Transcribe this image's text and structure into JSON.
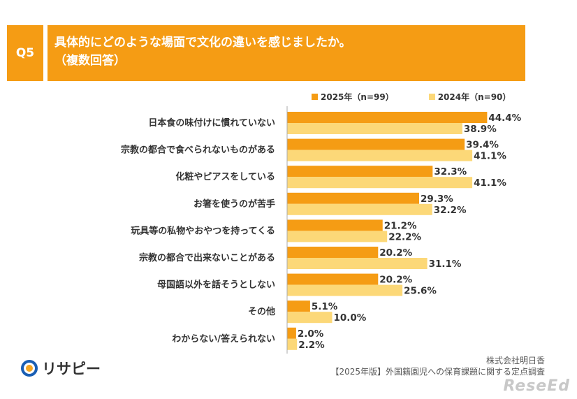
{
  "header": {
    "badge": "Q5",
    "title_line1": "具体的にどのような場面で文化の違いを感じましたか。",
    "title_line2": "（複数回答）"
  },
  "legend": {
    "series1": "2025年（n=99）",
    "series2": "2024年（n=90）"
  },
  "colors": {
    "series1": "#f59c14",
    "series2": "#fcd878",
    "header": "#f59c14",
    "axis": "#aaaaaa"
  },
  "footer": {
    "logo": "リサピー",
    "source_line1": "株式会社明日香",
    "source_line2": "【2025年版】外国籍園児への保育課題に関する定点調査",
    "watermark": "ReseEd"
  },
  "chart_data": {
    "type": "bar",
    "orientation": "horizontal",
    "categories": [
      "日本食の味付けに慣れていない",
      "宗教の都合で食べられないものがある",
      "化粧やピアスをしている",
      "お箸を使うのが苦手",
      "玩具等の私物やおやつを持ってくる",
      "宗教の都合で出来ないことがある",
      "母国語以外を話そうとしない",
      "その他",
      "わからない/答えられない"
    ],
    "series": [
      {
        "name": "2025年（n=99）",
        "values": [
          44.4,
          39.4,
          32.3,
          29.3,
          21.2,
          20.2,
          20.2,
          5.1,
          2.0
        ],
        "labels": [
          "44.4%",
          "39.4%",
          "32.3%",
          "29.3%",
          "21.2%",
          "20.2%",
          "20.2%",
          "5.1%",
          "2.0%"
        ]
      },
      {
        "name": "2024年（n=90）",
        "values": [
          38.9,
          41.1,
          41.1,
          32.2,
          22.2,
          31.1,
          25.6,
          10.0,
          2.2
        ],
        "labels": [
          "38.9%",
          "41.1%",
          "41.1%",
          "32.2%",
          "22.2%",
          "31.1%",
          "25.6%",
          "10.0%",
          "2.2%"
        ]
      }
    ],
    "xlim": [
      0,
      50
    ],
    "grid": false,
    "legend_position": "top-right"
  }
}
